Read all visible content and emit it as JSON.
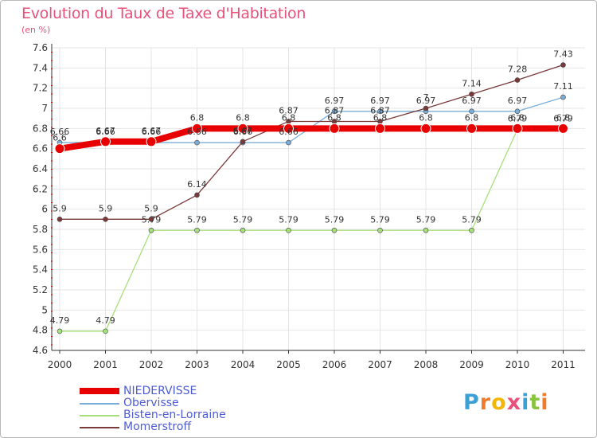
{
  "header": {
    "title": "Evolution du Taux de Taxe d'Habitation",
    "unit": "(en %)"
  },
  "logo": {
    "letters": [
      "P",
      "r",
      "o",
      "x",
      "i",
      "t",
      "i"
    ],
    "colors": [
      "#3aa0d8",
      "#f07c2a",
      "#f2b705",
      "#e8527a",
      "#3aa0d8",
      "#8ac43f",
      "#f07c2a"
    ]
  },
  "chart_data": {
    "type": "line",
    "title": "Evolution du Taux de Taxe d'Habitation",
    "ylabel": "(en %)",
    "x": [
      "2000",
      "2001",
      "2002",
      "2003",
      "2004",
      "2005",
      "2006",
      "2007",
      "2008",
      "2009",
      "2010",
      "2011"
    ],
    "ylim": [
      4.6,
      7.6
    ],
    "yticks": [
      "4.6",
      "4.8",
      "5",
      "5.2",
      "5.4",
      "5.6",
      "5.8",
      "6",
      "6.2",
      "6.4",
      "6.6",
      "6.8",
      "7",
      "7.2",
      "7.4",
      "7.6"
    ],
    "grid": true,
    "legend_position": "bottom-left",
    "series": [
      {
        "name": "NIEDERVISSE",
        "color": "#e80000",
        "values": [
          6.6,
          6.67,
          6.67,
          6.8,
          6.8,
          6.8,
          6.8,
          6.8,
          6.8,
          6.8,
          6.8,
          6.8
        ],
        "labels": [
          "6.6",
          "6.67",
          "6.67",
          "6.8",
          "6.8",
          "6.8",
          "6.8",
          "6.8",
          "6.8",
          "6.8",
          "6.8",
          "6.8"
        ]
      },
      {
        "name": "Obervisse",
        "color": "#7aaed8",
        "values": [
          6.66,
          6.66,
          6.66,
          6.66,
          6.66,
          6.66,
          6.97,
          6.97,
          6.97,
          6.97,
          6.97,
          7.11
        ],
        "labels": [
          "6.66",
          "6.66",
          "6.66",
          "6.66",
          "6.66",
          "6.66",
          "6.97",
          "6.97",
          "6.97",
          "6.97",
          "6.97",
          "7.11"
        ]
      },
      {
        "name": "Bisten-en-Lorraine",
        "color": "#a6e07c",
        "values": [
          4.79,
          4.79,
          5.79,
          5.79,
          5.79,
          5.79,
          5.79,
          5.79,
          5.79,
          5.79,
          6.79,
          6.79
        ],
        "labels": [
          "4.79",
          "4.79",
          "5.79",
          "5.79",
          "5.79",
          "5.79",
          "5.79",
          "5.79",
          "5.79",
          "5.79",
          "6.79",
          "6.79"
        ]
      },
      {
        "name": "Momerstroff",
        "color": "#7a3a3a",
        "values": [
          5.9,
          5.9,
          5.9,
          6.14,
          6.67,
          6.87,
          6.87,
          6.87,
          7,
          7.14,
          7.28,
          7.43
        ],
        "labels": [
          "5.9",
          "5.9",
          "5.9",
          "6.14",
          "6.67",
          "6.87",
          "6.87",
          "6.87",
          "7",
          "7.14",
          "7.28",
          "7.43"
        ]
      }
    ]
  }
}
